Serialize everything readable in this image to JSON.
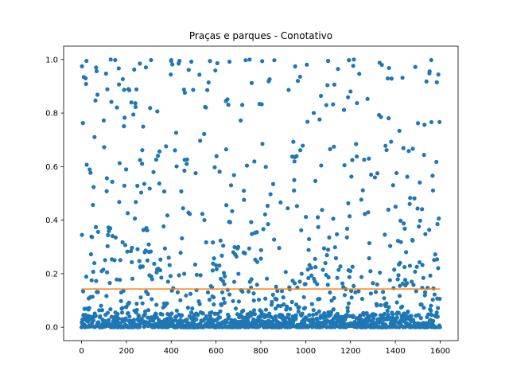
{
  "chart_data": {
    "type": "scatter",
    "title": "Praças e parques - Conotativo",
    "xlabel": "",
    "ylabel": "",
    "xlim": [
      -80,
      1680
    ],
    "ylim": [
      -0.05,
      1.05
    ],
    "x_ticks": [
      0,
      200,
      400,
      600,
      800,
      1000,
      1200,
      1400,
      1600
    ],
    "x_tick_labels": [
      "0",
      "200",
      "400",
      "600",
      "800",
      "1000",
      "1200",
      "1400",
      "1600"
    ],
    "y_ticks": [
      0.0,
      0.2,
      0.4,
      0.6,
      0.8,
      1.0
    ],
    "y_tick_labels": [
      "0.0",
      "0.2",
      "0.4",
      "0.6",
      "0.8",
      "1.0"
    ],
    "grid": false,
    "legend": "none",
    "series": [
      {
        "kind": "points",
        "color": "#1f77b4",
        "n_points": 1600,
        "x_range": [
          0,
          1600
        ],
        "distribution": {
          "frac_near_zero": 0.6,
          "near_zero_max": 0.05,
          "frac_low": 0.22,
          "low_range": [
            0.05,
            0.3
          ],
          "frac_mid": 0.11,
          "mid_range": [
            0.3,
            0.7
          ],
          "frac_high": 0.07,
          "high_range": [
            0.7,
            1.0
          ]
        },
        "notable_points": [
          {
            "x": 2,
            "y": 0.975
          },
          {
            "x": 22,
            "y": 0.995
          },
          {
            "x": 18,
            "y": 0.93
          },
          {
            "x": 65,
            "y": 0.97
          },
          {
            "x": 130,
            "y": 1.0
          },
          {
            "x": 150,
            "y": 0.998
          },
          {
            "x": 260,
            "y": 0.985
          },
          {
            "x": 310,
            "y": 0.998
          },
          {
            "x": 400,
            "y": 0.995
          },
          {
            "x": 490,
            "y": 0.992
          },
          {
            "x": 660,
            "y": 0.992
          },
          {
            "x": 750,
            "y": 1.0
          },
          {
            "x": 1100,
            "y": 0.995
          },
          {
            "x": 1215,
            "y": 1.0
          },
          {
            "x": 1340,
            "y": 0.98
          },
          {
            "x": 1560,
            "y": 0.998
          },
          {
            "x": 1585,
            "y": 0.915
          }
        ]
      },
      {
        "kind": "line",
        "color": "#ff7f0e",
        "x": [
          0,
          1600
        ],
        "y": [
          0.143,
          0.143
        ]
      }
    ]
  }
}
